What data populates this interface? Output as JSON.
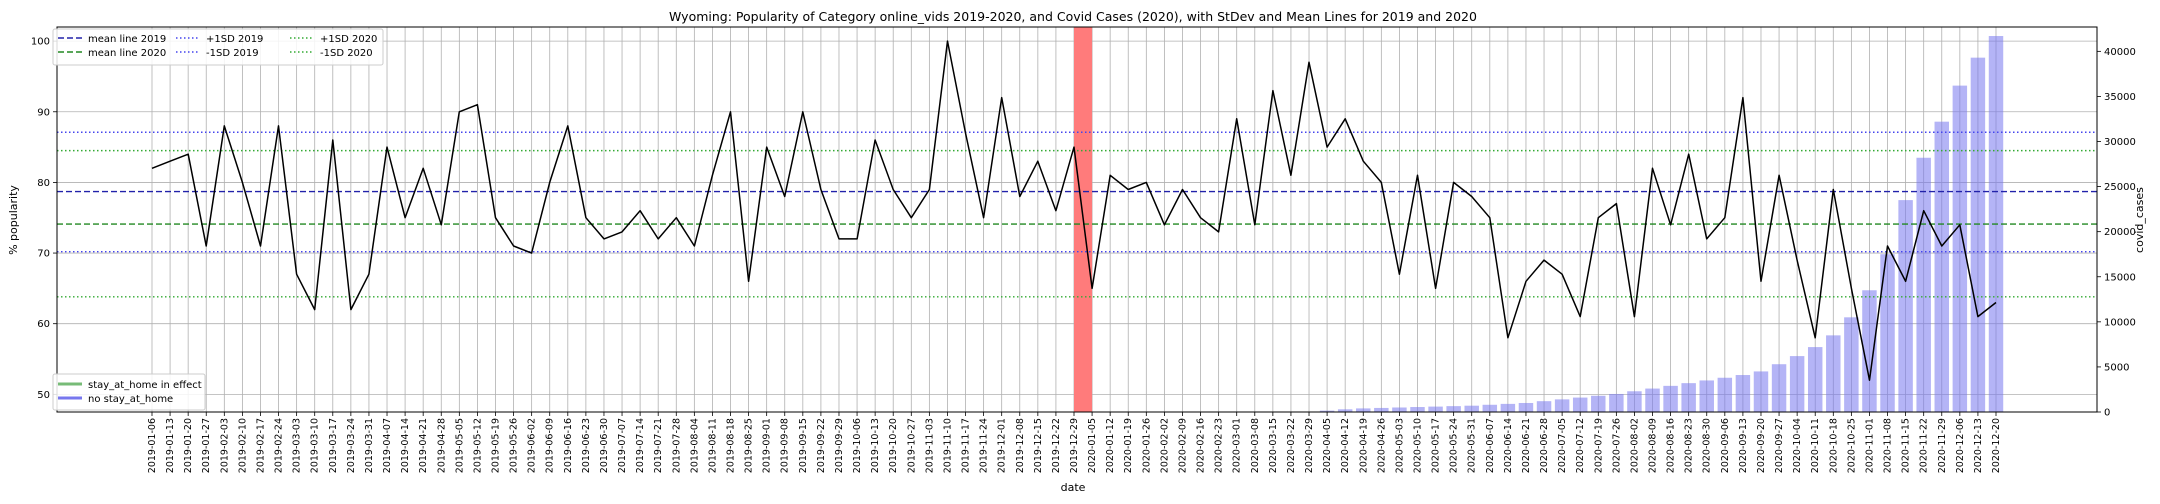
{
  "chart_data": {
    "type": "line",
    "title": "Wyoming: Popularity of Category online_vids 2019-2020, and Covid Cases (2020), with StDev and Mean Lines for 2019 and 2020",
    "xlabel": "date",
    "ylabel": "% popularity",
    "y2label": "covid_cases",
    "ylim": [
      47.5,
      102
    ],
    "y2lim": [
      0,
      42700
    ],
    "y_ticks": [
      "50",
      "60",
      "70",
      "80",
      "90",
      "100"
    ],
    "y2_ticks": [
      "0",
      "5000",
      "10000",
      "15000",
      "20000",
      "25000",
      "30000",
      "35000",
      "40000"
    ],
    "grid": true,
    "dates": [
      "2019-01-06",
      "2019-01-13",
      "2019-01-20",
      "2019-01-27",
      "2019-02-03",
      "2019-02-10",
      "2019-02-17",
      "2019-02-24",
      "2019-03-03",
      "2019-03-10",
      "2019-03-17",
      "2019-03-24",
      "2019-03-31",
      "2019-04-07",
      "2019-04-14",
      "2019-04-21",
      "2019-04-28",
      "2019-05-05",
      "2019-05-12",
      "2019-05-19",
      "2019-05-26",
      "2019-06-02",
      "2019-06-09",
      "2019-06-16",
      "2019-06-23",
      "2019-06-30",
      "2019-07-07",
      "2019-07-14",
      "2019-07-21",
      "2019-07-28",
      "2019-08-04",
      "2019-08-11",
      "2019-08-18",
      "2019-08-25",
      "2019-09-01",
      "2019-09-08",
      "2019-09-15",
      "2019-09-22",
      "2019-09-29",
      "2019-10-06",
      "2019-10-13",
      "2019-10-20",
      "2019-10-27",
      "2019-11-03",
      "2019-11-10",
      "2019-11-17",
      "2019-11-24",
      "2019-12-01",
      "2019-12-08",
      "2019-12-15",
      "2019-12-22",
      "2019-12-29",
      "2020-01-05",
      "2020-01-12",
      "2020-01-19",
      "2020-01-26",
      "2020-02-02",
      "2020-02-09",
      "2020-02-16",
      "2020-02-23",
      "2020-03-01",
      "2020-03-08",
      "2020-03-15",
      "2020-03-22",
      "2020-03-29",
      "2020-04-05",
      "2020-04-12",
      "2020-04-19",
      "2020-04-26",
      "2020-05-03",
      "2020-05-10",
      "2020-05-17",
      "2020-05-24",
      "2020-05-31",
      "2020-06-07",
      "2020-06-14",
      "2020-06-21",
      "2020-06-28",
      "2020-07-05",
      "2020-07-12",
      "2020-07-19",
      "2020-07-26",
      "2020-08-02",
      "2020-08-09",
      "2020-08-16",
      "2020-08-23",
      "2020-08-30",
      "2020-09-06",
      "2020-09-13",
      "2020-09-20",
      "2020-09-27",
      "2020-10-04",
      "2020-10-11",
      "2020-10-18",
      "2020-10-25",
      "2020-11-01",
      "2020-11-08",
      "2020-11-15",
      "2020-11-22",
      "2020-11-29",
      "2020-12-06",
      "2020-12-13",
      "2020-12-20"
    ],
    "series": [
      {
        "name": "popularity",
        "color": "#000000",
        "values": [
          82,
          83,
          84,
          71,
          88,
          80,
          71,
          88,
          67,
          62,
          86,
          62,
          67,
          85,
          75,
          82,
          74,
          90,
          91,
          75,
          71,
          70,
          80,
          88,
          75,
          72,
          73,
          76,
          72,
          75,
          71,
          81,
          90,
          66,
          85,
          78,
          90,
          79,
          72,
          72,
          86,
          79,
          75,
          79,
          100,
          87,
          75,
          92,
          78,
          83,
          76,
          85,
          65,
          81,
          79,
          80,
          74,
          79,
          75,
          73,
          89,
          74,
          93,
          81,
          97,
          85,
          89,
          83,
          80,
          67,
          81,
          65,
          80,
          78,
          75,
          58,
          66,
          69,
          67,
          61,
          75,
          77,
          61,
          82,
          74,
          84,
          72,
          75,
          92,
          66,
          81,
          69,
          58,
          79,
          65,
          52,
          71,
          66,
          76,
          71,
          74,
          61,
          63
        ]
      }
    ],
    "covid_cases": {
      "name": "covid_cases",
      "color": "#7777ee",
      "values": [
        0,
        0,
        0,
        0,
        0,
        0,
        0,
        0,
        0,
        0,
        0,
        0,
        0,
        0,
        0,
        0,
        0,
        0,
        0,
        0,
        0,
        0,
        0,
        0,
        0,
        0,
        0,
        0,
        0,
        0,
        0,
        0,
        0,
        0,
        0,
        0,
        0,
        0,
        0,
        0,
        0,
        0,
        0,
        0,
        0,
        0,
        0,
        0,
        0,
        0,
        0,
        0,
        0,
        0,
        0,
        0,
        0,
        0,
        0,
        0,
        0,
        0,
        0,
        0,
        0,
        150,
        300,
        400,
        450,
        500,
        550,
        600,
        650,
        700,
        800,
        900,
        1000,
        1200,
        1400,
        1600,
        1800,
        2000,
        2300,
        2600,
        2900,
        3200,
        3500,
        3800,
        4100,
        4500,
        5300,
        6200,
        7200,
        8500,
        10500,
        13500,
        17500,
        23500,
        28200,
        32200,
        36200,
        39300,
        41700
      ]
    },
    "stay_at_home_band": {
      "from": "2019-12-29",
      "to": "2020-01-05",
      "color": "#ff7b7b"
    },
    "reference_lines": [
      {
        "name": "mean line 2019",
        "value": 78.7,
        "color": "#2222aa",
        "style": "dashed"
      },
      {
        "name": "mean line 2020",
        "value": 74.1,
        "color": "#228822",
        "style": "dashed"
      },
      {
        "name": "+1SD 2019",
        "value": 87.1,
        "color": "#4444ee",
        "style": "dotted"
      },
      {
        "name": "-1SD 2019",
        "value": 70.2,
        "color": "#4444ee",
        "style": "dotted"
      },
      {
        "name": "+1SD 2020",
        "value": 84.5,
        "color": "#33aa33",
        "style": "dotted"
      },
      {
        "name": "-1SD 2020",
        "value": 63.8,
        "color": "#33aa33",
        "style": "dotted"
      }
    ],
    "legend_top": {
      "placement": "top-left",
      "entries": [
        {
          "label": "mean line 2019",
          "color": "#2222aa",
          "style": "dashed"
        },
        {
          "label": "mean line 2020",
          "color": "#228822",
          "style": "dashed"
        },
        {
          "label": "+1SD 2019",
          "color": "#4444ee",
          "style": "dotted"
        },
        {
          "label": "-1SD 2019",
          "color": "#4444ee",
          "style": "dotted"
        },
        {
          "label": "+1SD 2020",
          "color": "#33aa33",
          "style": "dotted"
        },
        {
          "label": "-1SD 2020",
          "color": "#33aa33",
          "style": "dotted"
        }
      ]
    },
    "legend_bottom": {
      "placement": "bottom-left",
      "entries": [
        {
          "label": "stay_at_home in effect",
          "color": "#77bb77"
        },
        {
          "label": "no stay_at_home",
          "color": "#7777ee"
        }
      ]
    }
  }
}
